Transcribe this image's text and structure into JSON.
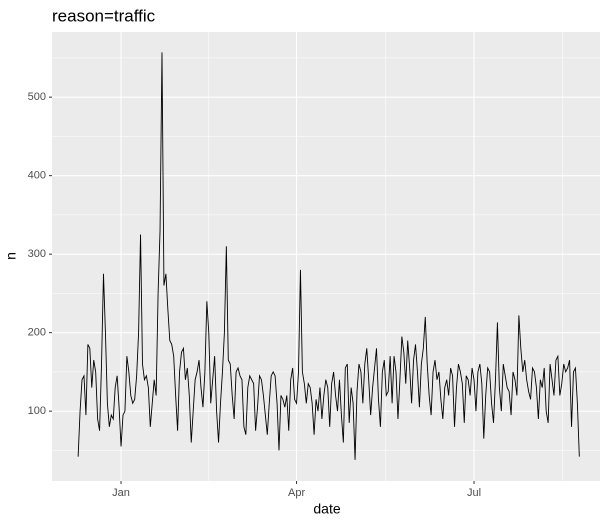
{
  "chart_data": {
    "type": "line",
    "title": "reason=traffic",
    "x_label": "date",
    "y_label": "n",
    "x": [
      -22,
      -21,
      -20,
      -19,
      -18,
      -17,
      -16,
      -15,
      -14,
      -13,
      -12,
      -11,
      -10,
      -9,
      -8,
      -7,
      -6,
      -5,
      -4,
      -3,
      -2,
      -1,
      0,
      1,
      2,
      3,
      4,
      5,
      6,
      7,
      8,
      9,
      10,
      11,
      12,
      13,
      14,
      15,
      16,
      17,
      18,
      19,
      20,
      21,
      22,
      23,
      24,
      25,
      26,
      27,
      28,
      29,
      30,
      31,
      32,
      33,
      34,
      35,
      36,
      37,
      38,
      39,
      40,
      41,
      42,
      43,
      44,
      45,
      46,
      47,
      48,
      49,
      50,
      51,
      52,
      53,
      54,
      55,
      56,
      57,
      58,
      59,
      60,
      61,
      62,
      63,
      64,
      65,
      66,
      67,
      68,
      69,
      70,
      71,
      72,
      73,
      74,
      75,
      76,
      77,
      78,
      79,
      80,
      81,
      82,
      83,
      84,
      85,
      86,
      87,
      88,
      89,
      90,
      91,
      92,
      93,
      94,
      95,
      96,
      97,
      98,
      99,
      100,
      101,
      102,
      103,
      104,
      105,
      106,
      107,
      108,
      109,
      110,
      111,
      112,
      113,
      114,
      115,
      116,
      117,
      118,
      119,
      120,
      121,
      122,
      123,
      124,
      125,
      126,
      127,
      128,
      129,
      130,
      131,
      132,
      133,
      134,
      135,
      136,
      137,
      138,
      139,
      140,
      141,
      142,
      143,
      144,
      145,
      146,
      147,
      148,
      149,
      150,
      151,
      152,
      153,
      154,
      155,
      156,
      157,
      158,
      159,
      160,
      161,
      162,
      163,
      164,
      165,
      166,
      167,
      168,
      169,
      170,
      171,
      172,
      173,
      174,
      175,
      176,
      177,
      178,
      179,
      180,
      181,
      182,
      183,
      184,
      185,
      186,
      187,
      188,
      189,
      190,
      191,
      192,
      193,
      194,
      195,
      196,
      197,
      198,
      199,
      200,
      201,
      202,
      203,
      204,
      205,
      206,
      207,
      208,
      209,
      210,
      211,
      212,
      213,
      214,
      215,
      216,
      217,
      218,
      219,
      220,
      221,
      222,
      223,
      224,
      225,
      226,
      227,
      228,
      229,
      230,
      231,
      232,
      233,
      234,
      235
    ],
    "series": [
      {
        "color": "#000000",
        "values": [
          42,
          100,
          140,
          145,
          95,
          185,
          180,
          130,
          165,
          150,
          90,
          75,
          160,
          275,
          200,
          110,
          80,
          95,
          90,
          130,
          145,
          105,
          55,
          95,
          100,
          170,
          150,
          120,
          110,
          115,
          145,
          200,
          325,
          160,
          140,
          145,
          130,
          80,
          110,
          140,
          120,
          250,
          330,
          557,
          260,
          275,
          230,
          190,
          185,
          170,
          120,
          75,
          150,
          175,
          180,
          140,
          155,
          120,
          60,
          100,
          140,
          150,
          165,
          130,
          105,
          150,
          240,
          200,
          110,
          140,
          170,
          100,
          60,
          110,
          150,
          200,
          310,
          165,
          160,
          120,
          90,
          150,
          155,
          145,
          140,
          80,
          70,
          130,
          145,
          140,
          135,
          75,
          105,
          145,
          140,
          120,
          95,
          70,
          110,
          145,
          150,
          145,
          110,
          50,
          120,
          115,
          105,
          120,
          75,
          140,
          155,
          115,
          110,
          150,
          280,
          150,
          135,
          110,
          135,
          130,
          110,
          70,
          115,
          100,
          130,
          90,
          120,
          140,
          130,
          80,
          135,
          150,
          120,
          100,
          140,
          95,
          60,
          155,
          160,
          85,
          130,
          110,
          38,
          125,
          160,
          150,
          110,
          160,
          180,
          140,
          95,
          130,
          155,
          180,
          115,
          80,
          150,
          165,
          120,
          125,
          170,
          110,
          170,
          150,
          90,
          140,
          195,
          175,
          135,
          190,
          155,
          110,
          165,
          185,
          150,
          105,
          160,
          180,
          220,
          160,
          120,
          95,
          150,
          165,
          140,
          150,
          115,
          90,
          130,
          140,
          120,
          155,
          145,
          80,
          130,
          160,
          150,
          135,
          85,
          145,
          140,
          120,
          155,
          140,
          100,
          150,
          160,
          135,
          65,
          120,
          155,
          150,
          110,
          85,
          140,
          213,
          130,
          100,
          160,
          145,
          130,
          125,
          95,
          150,
          140,
          120,
          222,
          180,
          150,
          165,
          140,
          125,
          115,
          155,
          150,
          130,
          90,
          140,
          130,
          155,
          100,
          85,
          160,
          140,
          120,
          165,
          170,
          120,
          135,
          160,
          150,
          155,
          165,
          80,
          150,
          155,
          110,
          42
        ]
      }
    ],
    "xlim": [
      -35.4,
      245.6
    ],
    "xticks": [
      {
        "value": 0,
        "label": "Jan"
      },
      {
        "value": 90,
        "label": "Apr"
      },
      {
        "value": 181,
        "label": "Jul"
      }
    ],
    "ylim": [
      11,
      583
    ],
    "yticks": [
      100,
      200,
      300,
      400,
      500
    ],
    "grid": true,
    "minor_grid": true
  }
}
